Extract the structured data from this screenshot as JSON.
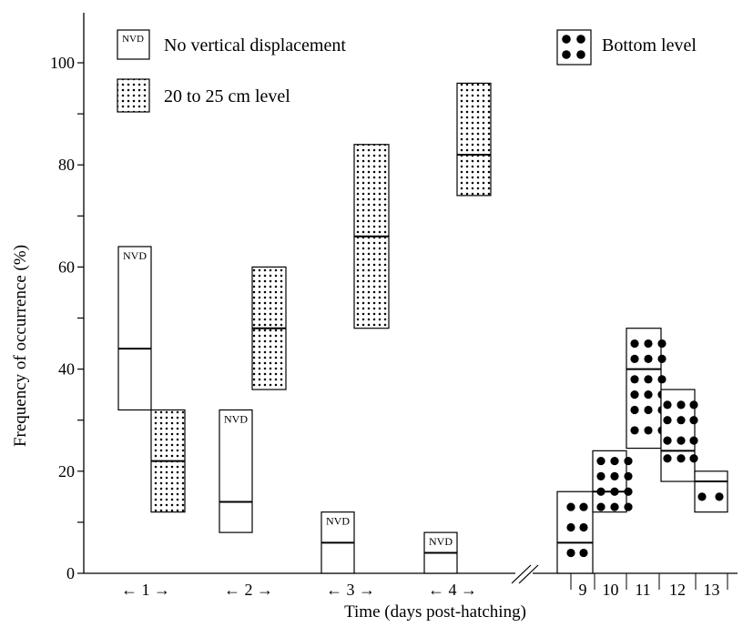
{
  "chart_data": {
    "type": "box",
    "title": "",
    "xlabel": "Time (days post-hatching)",
    "ylabel": "Frequency of occurrence (%)",
    "ylim": [
      0,
      100
    ],
    "y_ticks": [
      0,
      20,
      40,
      60,
      80,
      100
    ],
    "x_ticks": [
      {
        "label": "1",
        "arrows": true
      },
      {
        "label": "2",
        "arrows": true
      },
      {
        "label": "3",
        "arrows": true
      },
      {
        "label": "4",
        "arrows": true
      },
      {
        "label": "9",
        "arrows": false
      },
      {
        "label": "10",
        "arrows": false
      },
      {
        "label": "11",
        "arrows": false
      },
      {
        "label": "12",
        "arrows": false
      },
      {
        "label": "13",
        "arrows": false
      }
    ],
    "axis_break": "//",
    "legend": [
      {
        "pattern": "nvd",
        "swatch_label": "NVD",
        "label": "No vertical displacement"
      },
      {
        "pattern": "smalldots",
        "label": "20 to 25 cm level"
      },
      {
        "pattern": "bigdots",
        "label": "Bottom level"
      }
    ],
    "series": [
      {
        "name": "No vertical displacement",
        "pattern": "nvd",
        "box_label": "NVD",
        "points": [
          {
            "x": "1",
            "low": 32,
            "median": 44,
            "high": 64
          },
          {
            "x": "2",
            "low": 8,
            "median": 14,
            "high": 32
          },
          {
            "x": "3",
            "low": 0,
            "median": 6,
            "high": 12
          },
          {
            "x": "4",
            "low": 0,
            "median": 4,
            "high": 8
          }
        ]
      },
      {
        "name": "20 to 25 cm level",
        "pattern": "smalldots",
        "points": [
          {
            "x": "1",
            "low": 12,
            "median": 22,
            "high": 32
          },
          {
            "x": "2",
            "low": 36,
            "median": 48,
            "high": 60
          },
          {
            "x": "3",
            "low": 48,
            "median": 66,
            "high": 84
          },
          {
            "x": "4",
            "low": 74,
            "median": 82,
            "high": 96
          }
        ]
      },
      {
        "name": "Bottom level",
        "pattern": "bigdots",
        "points": [
          {
            "x": "9",
            "low": 0,
            "median": 6,
            "high": 16
          },
          {
            "x": "10",
            "low": 12,
            "median": 16,
            "high": 24
          },
          {
            "x": "11",
            "low": 24.5,
            "median": 40,
            "high": 48
          },
          {
            "x": "12",
            "low": 18,
            "median": 24,
            "high": 36
          },
          {
            "x": "13",
            "low": 12,
            "median": 18,
            "high": 20
          }
        ]
      }
    ]
  }
}
